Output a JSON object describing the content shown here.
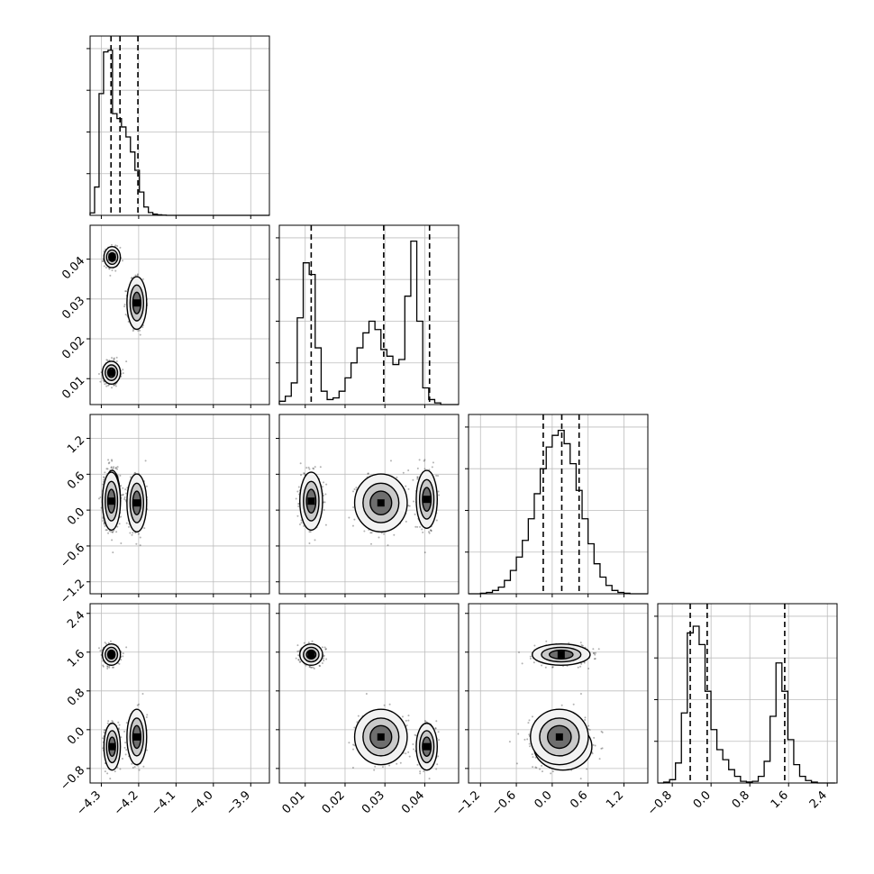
{
  "chart_data": {
    "type": "corner",
    "parameters": [
      {
        "id": "p0",
        "range": [
          -4.33,
          -3.85
        ],
        "ticks": [
          -4.3,
          -4.2,
          -4.1,
          -4.0,
          -3.9
        ],
        "tick_labels": [
          "−4.3",
          "−4.2",
          "−4.1",
          "−4.0",
          "−3.9"
        ],
        "quantiles": [
          -4.274,
          -4.25,
          -4.202
        ]
      },
      {
        "id": "p1",
        "range": [
          0.0035,
          0.0485
        ],
        "ticks": [
          0.01,
          0.02,
          0.03,
          0.04
        ],
        "tick_labels": [
          "0.01",
          "0.02",
          "0.03",
          "0.04"
        ],
        "quantiles": [
          0.0115,
          0.0297,
          0.0412
        ]
      },
      {
        "id": "p2",
        "range": [
          -1.4,
          1.6
        ],
        "ticks": [
          -1.2,
          -0.6,
          0.0,
          0.6,
          1.2
        ],
        "tick_labels": [
          "−1.2",
          "−0.6",
          "0.0",
          "0.6",
          "1.2"
        ],
        "quantiles": [
          -0.15,
          0.16,
          0.45
        ]
      },
      {
        "id": "p3",
        "range": [
          -1.1,
          2.6
        ],
        "ticks": [
          -0.8,
          0.0,
          0.8,
          1.6,
          2.4
        ],
        "tick_labels": [
          "−0.8",
          "0.0",
          "0.8",
          "1.6",
          "2.4"
        ],
        "quantiles": [
          -0.43,
          -0.08,
          1.52
        ]
      }
    ],
    "histograms": [
      {
        "param": "p0",
        "ymax": 1.0,
        "edges": [
          -4.33,
          -4.318,
          -4.306,
          -4.294,
          -4.282,
          -4.27,
          -4.258,
          -4.246,
          -4.234,
          -4.222,
          -4.21,
          -4.198,
          -4.186,
          -4.174,
          -4.162,
          -4.15,
          -4.138,
          -4.126,
          -4.114,
          -4.102,
          -4.09,
          -4.078,
          -4.066,
          -4.054,
          -4.042,
          -4.03,
          -4.018,
          -4.006,
          -3.994,
          -3.982,
          -3.97,
          -3.958,
          -3.946,
          -3.934,
          -3.922,
          -3.91,
          -3.898,
          -3.886,
          -3.874,
          -3.862,
          -3.85
        ],
        "counts": [
          0.015,
          0.17,
          0.73,
          0.98,
          0.99,
          0.61,
          0.58,
          0.53,
          0.47,
          0.38,
          0.27,
          0.14,
          0.05,
          0.017,
          0.007,
          0.003,
          0.001,
          0,
          0,
          0,
          0,
          0,
          0,
          0,
          0,
          0,
          0,
          0,
          0,
          0,
          0,
          0,
          0,
          0,
          0,
          0,
          0,
          0,
          0,
          0
        ]
      },
      {
        "param": "p1",
        "ymax": 1.0,
        "edges": [
          0.0035,
          0.005,
          0.0065,
          0.008,
          0.0095,
          0.011,
          0.0125,
          0.014,
          0.0155,
          0.017,
          0.0185,
          0.02,
          0.0215,
          0.023,
          0.0245,
          0.026,
          0.0275,
          0.029,
          0.0305,
          0.032,
          0.0335,
          0.035,
          0.0365,
          0.038,
          0.0395,
          0.041,
          0.0425,
          0.044,
          0.0455,
          0.047,
          0.0485
        ],
        "counts": [
          0.02,
          0.05,
          0.13,
          0.52,
          0.85,
          0.78,
          0.34,
          0.08,
          0.03,
          0.04,
          0.08,
          0.16,
          0.25,
          0.34,
          0.43,
          0.5,
          0.45,
          0.33,
          0.29,
          0.24,
          0.27,
          0.65,
          0.98,
          0.5,
          0.1,
          0.03,
          0.01,
          0,
          0,
          0
        ]
      },
      {
        "param": "p2",
        "ymax": 1.0,
        "edges": [
          -1.4,
          -1.3,
          -1.2,
          -1.1,
          -1.0,
          -0.9,
          -0.8,
          -0.7,
          -0.6,
          -0.5,
          -0.4,
          -0.3,
          -0.2,
          -0.1,
          0.0,
          0.1,
          0.2,
          0.3,
          0.4,
          0.5,
          0.6,
          0.7,
          0.8,
          0.9,
          1.0,
          1.1,
          1.2,
          1.3,
          1.4,
          1.5,
          1.6
        ],
        "counts": [
          0,
          0,
          0.003,
          0.008,
          0.02,
          0.04,
          0.08,
          0.14,
          0.22,
          0.32,
          0.45,
          0.6,
          0.75,
          0.88,
          0.95,
          0.98,
          0.9,
          0.78,
          0.62,
          0.45,
          0.3,
          0.18,
          0.1,
          0.05,
          0.02,
          0.008,
          0.003,
          0,
          0,
          0
        ]
      },
      {
        "param": "p3",
        "ymax": 1.0,
        "edges": [
          -1.1,
          -0.978,
          -0.856,
          -0.734,
          -0.612,
          -0.49,
          -0.368,
          -0.246,
          -0.124,
          -0.002,
          0.12,
          0.242,
          0.364,
          0.486,
          0.608,
          0.73,
          0.852,
          0.974,
          1.096,
          1.218,
          1.34,
          1.462,
          1.584,
          1.706,
          1.828,
          1.95,
          2.072,
          2.194,
          2.316,
          2.438,
          2.56
        ],
        "counts": [
          0,
          0.005,
          0.02,
          0.12,
          0.42,
          0.9,
          0.94,
          0.83,
          0.55,
          0.32,
          0.2,
          0.14,
          0.08,
          0.04,
          0.01,
          0.006,
          0.01,
          0.04,
          0.13,
          0.4,
          0.72,
          0.55,
          0.26,
          0.11,
          0.04,
          0.015,
          0.005,
          0,
          0,
          0
        ]
      }
    ],
    "clusters": [
      {
        "p0": -4.271,
        "p1": 0.0405,
        "p2": 0.18,
        "p3": -0.35,
        "weight": 0.28
      },
      {
        "p0": -4.205,
        "p1": 0.029,
        "p2": 0.12,
        "p3": -0.15,
        "weight": 0.22
      },
      {
        "p0": -4.273,
        "p1": 0.0115,
        "p2": 0.15,
        "p3": 1.55,
        "weight": 0.34
      }
    ],
    "scatter_points": 1200,
    "grid": true,
    "title": "",
    "xlabel": "",
    "ylabel": ""
  }
}
